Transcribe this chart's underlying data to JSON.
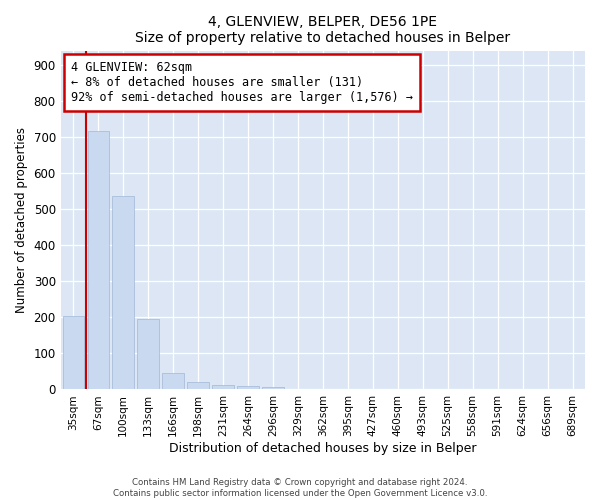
{
  "title": "4, GLENVIEW, BELPER, DE56 1PE",
  "subtitle": "Size of property relative to detached houses in Belper",
  "xlabel": "Distribution of detached houses by size in Belper",
  "ylabel": "Number of detached properties",
  "bar_labels": [
    "35sqm",
    "67sqm",
    "100sqm",
    "133sqm",
    "166sqm",
    "198sqm",
    "231sqm",
    "264sqm",
    "296sqm",
    "329sqm",
    "362sqm",
    "395sqm",
    "427sqm",
    "460sqm",
    "493sqm",
    "525sqm",
    "558sqm",
    "591sqm",
    "624sqm",
    "656sqm",
    "689sqm"
  ],
  "bar_values": [
    203,
    716,
    537,
    195,
    46,
    21,
    13,
    10,
    8,
    0,
    0,
    0,
    0,
    0,
    0,
    0,
    0,
    0,
    0,
    0,
    0
  ],
  "bar_color": "#c9d9f0",
  "vline_color": "#cc0000",
  "vline_x": 0.5,
  "annotation_line1": "4 GLENVIEW: 62sqm",
  "annotation_line2": "← 8% of detached houses are smaller (131)",
  "annotation_line3": "92% of semi-detached houses are larger (1,576) →",
  "annotation_box_color": "#ffffff",
  "annotation_box_edge": "#cc0000",
  "ylim": [
    0,
    940
  ],
  "yticks": [
    0,
    100,
    200,
    300,
    400,
    500,
    600,
    700,
    800,
    900
  ],
  "footer_text": "Contains HM Land Registry data © Crown copyright and database right 2024.\nContains public sector information licensed under the Open Government Licence v3.0.",
  "background_color": "#ffffff",
  "plot_bg_color": "#dce6f5"
}
